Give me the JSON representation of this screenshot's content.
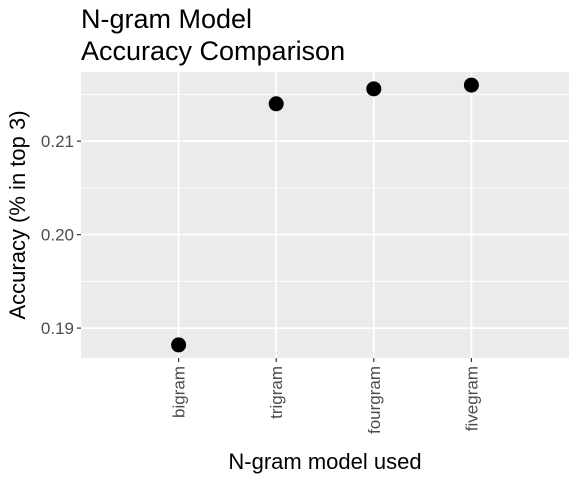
{
  "chart_data": {
    "type": "scatter",
    "title_lines": [
      "N-gram Model",
      "Accuracy Comparison"
    ],
    "xlabel": "N-gram model used",
    "ylabel": "Accuracy (% in top 3)",
    "categories": [
      "bigram",
      "trigram",
      "fourgram",
      "fivegram"
    ],
    "values": [
      0.1882,
      0.214,
      0.2156,
      0.216
    ],
    "y_ticks": [
      0.19,
      0.2,
      0.21
    ],
    "y_tick_labels": [
      "0.19",
      "0.20",
      "0.21"
    ],
    "ylim": [
      0.1868,
      0.2174
    ],
    "grid": true,
    "legend": "none",
    "colors": {
      "panel_background": "#ebebeb",
      "grid_line": "#ffffff",
      "point": "#000000",
      "tick_label": "#4d4d4d",
      "tick_mark": "#333333"
    }
  }
}
